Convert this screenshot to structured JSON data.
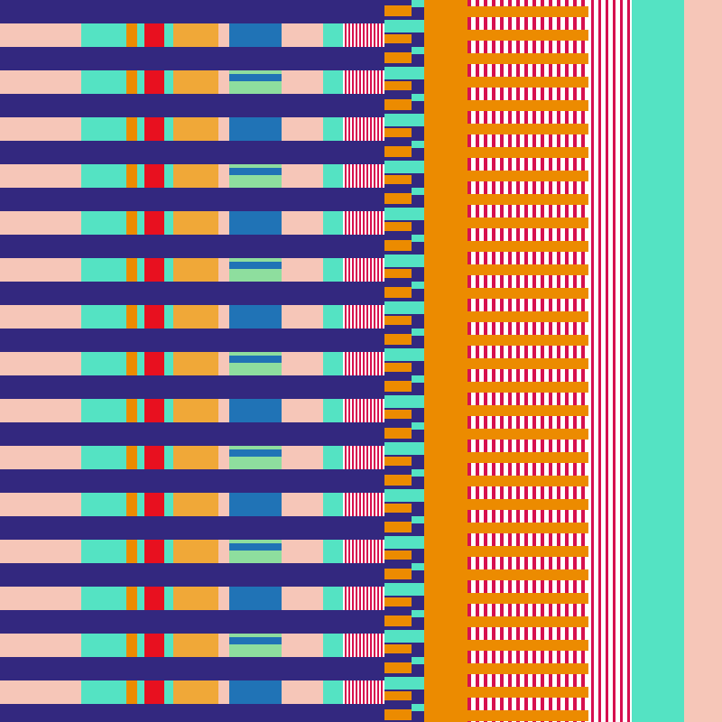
{
  "artwork": {
    "type": "abstract-stripe-pattern",
    "row_count": 15,
    "palette": {
      "navy": "#33287f",
      "peach": "#f6c6b8",
      "mint": "#54e3c3",
      "orange": "#ec8b00",
      "red": "#e8101f",
      "amber": "#f0a838",
      "blue": "#2073b6",
      "light_green": "#8ede9e",
      "crimson": "#d6104f",
      "white": "#ffffff"
    }
  }
}
